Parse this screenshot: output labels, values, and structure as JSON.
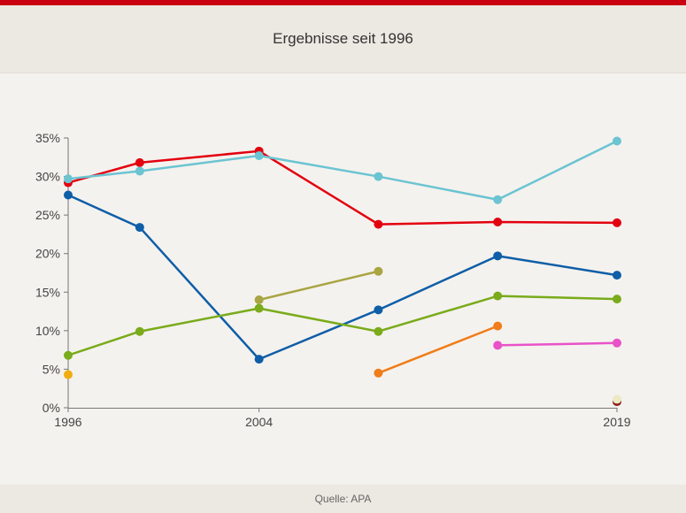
{
  "header": {
    "title": "Ergebnisse seit 1996"
  },
  "footer": {
    "source": "Quelle: APA"
  },
  "colors": {
    "top_bar": "#c8000f",
    "header_bg": "#ece8e2",
    "page_bg": "#f4f2ee"
  },
  "chart_data": {
    "type": "line",
    "title": "Ergebnisse seit 1996",
    "xlabel": "",
    "ylabel": "",
    "x": [
      1996,
      1999,
      2004,
      2009,
      2014,
      2019
    ],
    "x_tick_labels": [
      "1996",
      "2004",
      "2019"
    ],
    "y_ticks": [
      "0%",
      "5%",
      "10%",
      "15%",
      "20%",
      "25%",
      "30%",
      "35%"
    ],
    "ylim": [
      0,
      35
    ],
    "grid": false,
    "legend": "none",
    "series": [
      {
        "color": "#e3000f",
        "values": [
          29.2,
          31.8,
          33.3,
          23.8,
          24.1,
          24.0
        ]
      },
      {
        "color": "#6bc4d2",
        "values": [
          29.7,
          30.7,
          32.7,
          30.0,
          27.0,
          34.6
        ]
      },
      {
        "color": "#0e5ea8",
        "values": [
          27.6,
          23.4,
          6.3,
          12.7,
          19.7,
          17.2
        ]
      },
      {
        "color": "#7aab1b",
        "values": [
          6.8,
          9.9,
          12.9,
          9.9,
          14.5,
          14.1
        ]
      },
      {
        "color": "#a8a542",
        "values": [
          null,
          null,
          14.0,
          17.7,
          null,
          null
        ]
      },
      {
        "color": "#f07d19",
        "values": [
          null,
          null,
          null,
          4.5,
          10.6,
          null
        ]
      },
      {
        "color": "#e952c8",
        "values": [
          null,
          null,
          null,
          null,
          8.1,
          8.4
        ]
      },
      {
        "color": "#f1ac10",
        "values": [
          4.3,
          null,
          null,
          null,
          null,
          null
        ]
      },
      {
        "color": "#8b1a1a",
        "values": [
          null,
          null,
          null,
          null,
          null,
          0.8
        ]
      },
      {
        "color": "#ece9c4",
        "values": [
          null,
          null,
          null,
          null,
          null,
          1.1
        ]
      }
    ]
  }
}
